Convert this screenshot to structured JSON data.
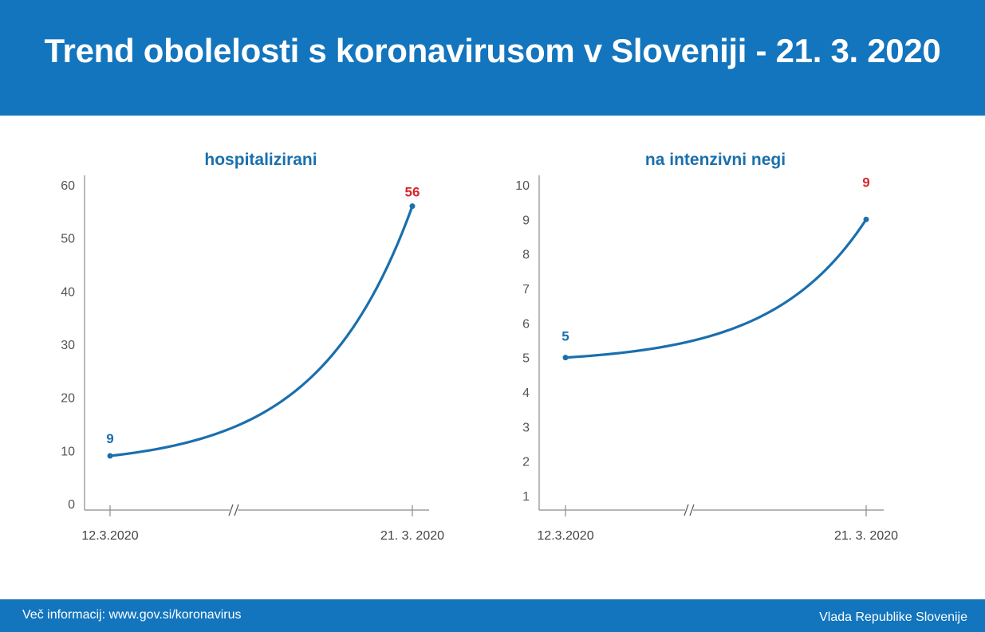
{
  "header": {
    "title": "Trend obolelosti s koronavirusom v Sloveniji - 21. 3. 2020"
  },
  "footer": {
    "info": "Več informacij: www.gov.si/koronavirus",
    "org": "Vlada Republike Slovenije"
  },
  "colors": {
    "brand": "#1275bd",
    "line": "#1a6fad",
    "highlight": "#d7262e",
    "axis": "#8a8a8a"
  },
  "chart_data": [
    {
      "type": "line",
      "title": "hospitalizirani",
      "x": [
        "12.3.2020",
        "21. 3. 2020"
      ],
      "values": [
        9,
        56
      ],
      "data_labels": [
        "9",
        "56"
      ],
      "ylim": [
        0,
        60
      ],
      "yticks": [
        0,
        10,
        20,
        30,
        40,
        50,
        60
      ],
      "axis_break": true,
      "xlabel": "",
      "ylabel": ""
    },
    {
      "type": "line",
      "title": "na intenzivni negi",
      "x": [
        "12.3.2020",
        "21. 3. 2020"
      ],
      "values": [
        5,
        9
      ],
      "data_labels": [
        "5",
        "9"
      ],
      "ylim": [
        1,
        10
      ],
      "yticks": [
        1,
        2,
        3,
        4,
        5,
        6,
        7,
        8,
        9,
        10
      ],
      "axis_break": true,
      "xlabel": "",
      "ylabel": ""
    }
  ]
}
